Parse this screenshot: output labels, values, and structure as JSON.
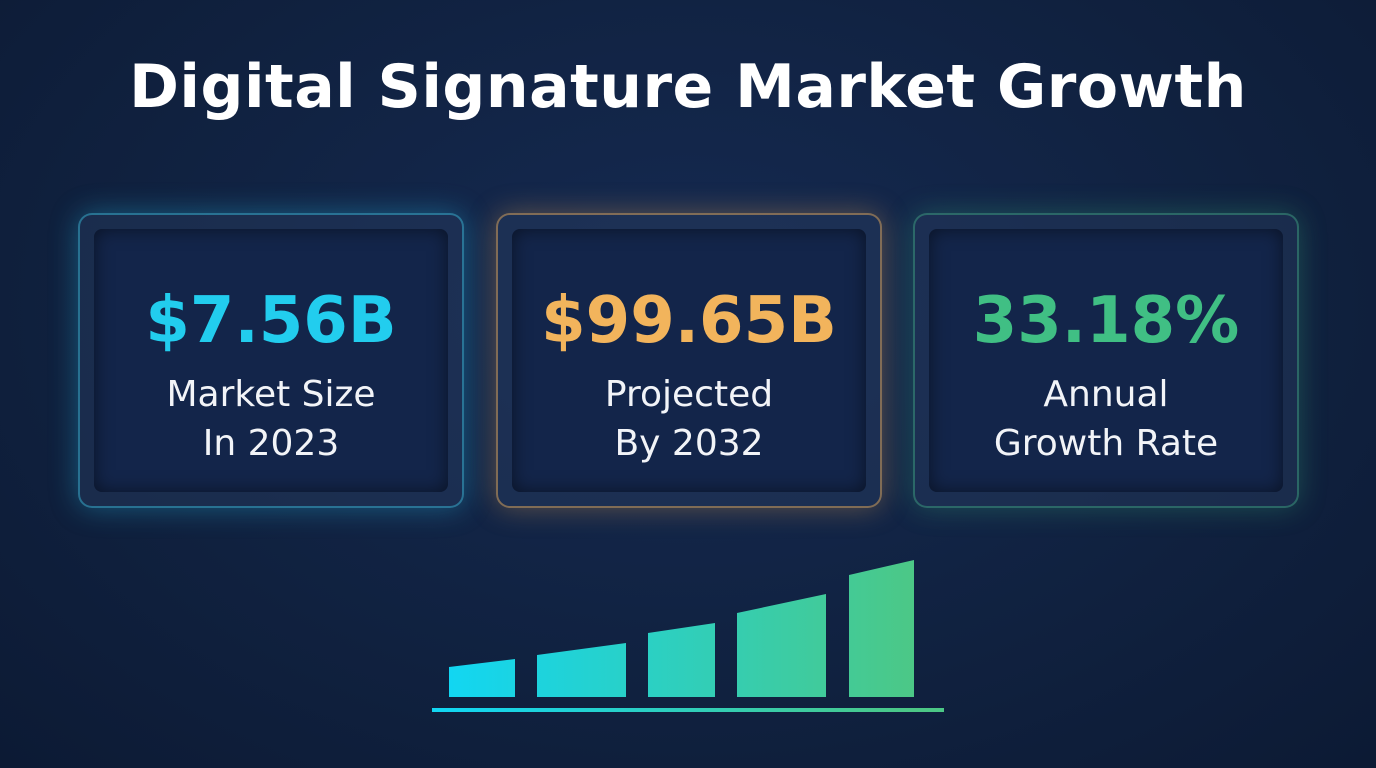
{
  "header": {
    "title": "Digital Signature Market Growth"
  },
  "cards": [
    {
      "value": "$7.56B",
      "label": [
        "Market Size",
        "In 2023"
      ]
    },
    {
      "value": "$99.65B",
      "label": [
        "Projected",
        "By 2032"
      ]
    },
    {
      "value": "33.18%",
      "label": [
        "Annual",
        "Growth Rate"
      ]
    }
  ]
}
